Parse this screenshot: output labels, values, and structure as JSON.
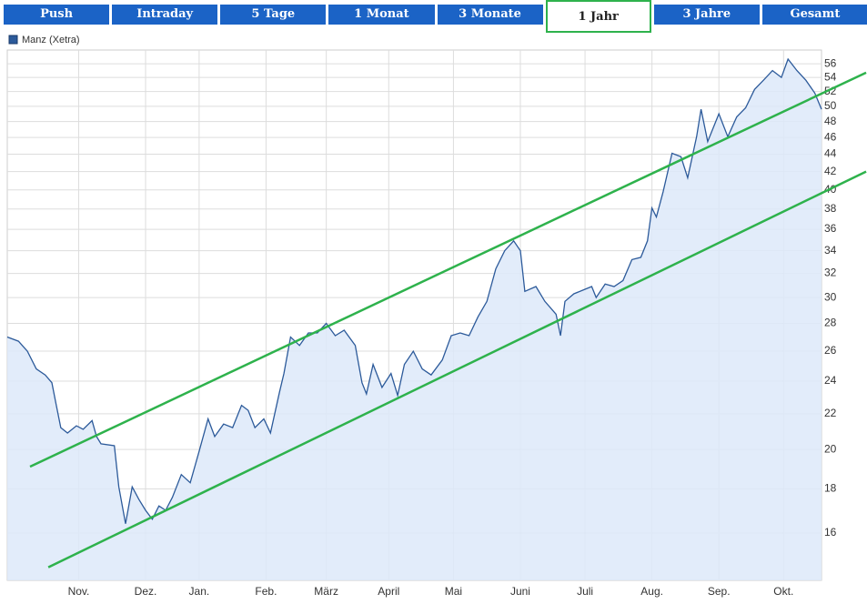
{
  "tabs": [
    "Push",
    "Intraday",
    "5 Tage",
    "1 Monat",
    "3 Monate",
    "1 Jahr",
    "3 Jahre",
    "Gesamt"
  ],
  "active_tab": 5,
  "chart_data": {
    "type": "line",
    "log_scale": true,
    "grid": true,
    "legend": "top-left",
    "series": [
      {
        "name": "Manz (Xetra)",
        "color": "#2c5a9a",
        "fill": "#dde9f9",
        "x": [
          0,
          5,
          9,
          13,
          17,
          20,
          22,
          24,
          27,
          31,
          34,
          38,
          40,
          42,
          48,
          50,
          53,
          56,
          59,
          62,
          65,
          68,
          71,
          74,
          78,
          82,
          86,
          90,
          93,
          97,
          101,
          105,
          108,
          111,
          115,
          118,
          122,
          124,
          127,
          131,
          135,
          139,
          143,
          147,
          151,
          156,
          159,
          161,
          164,
          168,
          172,
          175,
          178,
          182,
          186,
          190,
          195,
          199,
          203,
          207,
          211,
          215,
          219,
          223,
          227,
          230,
          232,
          237,
          241,
          246,
          248,
          250,
          254,
          258,
          262,
          264,
          268,
          272,
          276,
          280,
          284,
          287,
          289,
          291,
          294,
          298,
          302,
          305,
          309,
          311,
          314,
          319,
          323,
          327,
          331,
          335,
          339,
          343,
          347,
          350,
          354,
          358,
          362,
          365
        ],
        "values": [
          27.0,
          26.7,
          26.0,
          24.8,
          24.4,
          23.9,
          22.5,
          21.2,
          20.9,
          21.3,
          21.1,
          21.6,
          20.7,
          20.3,
          20.2,
          18.1,
          16.4,
          18.1,
          17.5,
          17.0,
          16.6,
          17.2,
          17.0,
          17.6,
          18.7,
          18.3,
          19.9,
          21.7,
          20.7,
          21.4,
          21.2,
          22.5,
          22.2,
          21.2,
          21.7,
          20.9,
          23.3,
          24.5,
          27.0,
          26.4,
          27.3,
          27.3,
          28.0,
          27.1,
          27.5,
          26.4,
          23.9,
          23.2,
          25.1,
          23.6,
          24.5,
          23.1,
          25.1,
          26.0,
          24.8,
          24.4,
          25.4,
          27.1,
          27.3,
          27.1,
          28.5,
          29.7,
          32.4,
          34.0,
          34.9,
          34.0,
          30.5,
          30.9,
          29.7,
          28.7,
          27.1,
          29.7,
          30.3,
          30.6,
          30.9,
          30.0,
          31.1,
          30.9,
          31.4,
          33.2,
          33.4,
          34.9,
          38.1,
          37.2,
          39.8,
          44.1,
          43.7,
          41.3,
          46.1,
          49.6,
          45.5,
          49.0,
          46.1,
          48.6,
          49.8,
          52.3,
          53.6,
          55.0,
          54.0,
          56.7,
          55.0,
          53.6,
          51.8,
          49.6
        ]
      }
    ],
    "trend_lines": [
      {
        "color": "#2eb24c",
        "x": [
          10.2,
          385
        ],
        "values": [
          19.1,
          54.7
        ]
      },
      {
        "color": "#2eb24c",
        "x": [
          18.4,
          385
        ],
        "values": [
          14.6,
          42.0
        ]
      }
    ],
    "xlim": [
      0,
      365
    ],
    "xticks": [
      {
        "value": 32,
        "label": "Nov."
      },
      {
        "value": 62,
        "label": "Dez."
      },
      {
        "value": 86,
        "label": "Jan."
      },
      {
        "value": 116,
        "label": "Feb."
      },
      {
        "value": 143,
        "label": "März"
      },
      {
        "value": 171,
        "label": "April"
      },
      {
        "value": 200,
        "label": "Mai"
      },
      {
        "value": 230,
        "label": "Juni"
      },
      {
        "value": 259,
        "label": "Juli"
      },
      {
        "value": 289,
        "label": "Aug."
      },
      {
        "value": 319,
        "label": "Sep."
      },
      {
        "value": 348,
        "label": "Okt."
      }
    ],
    "ylim": [
      14.1,
      58.1
    ],
    "yticks": [
      16,
      18,
      20,
      22,
      24,
      26,
      28,
      30,
      32,
      34,
      36,
      38,
      40,
      42,
      44,
      46,
      48,
      50,
      52,
      54,
      56
    ]
  }
}
